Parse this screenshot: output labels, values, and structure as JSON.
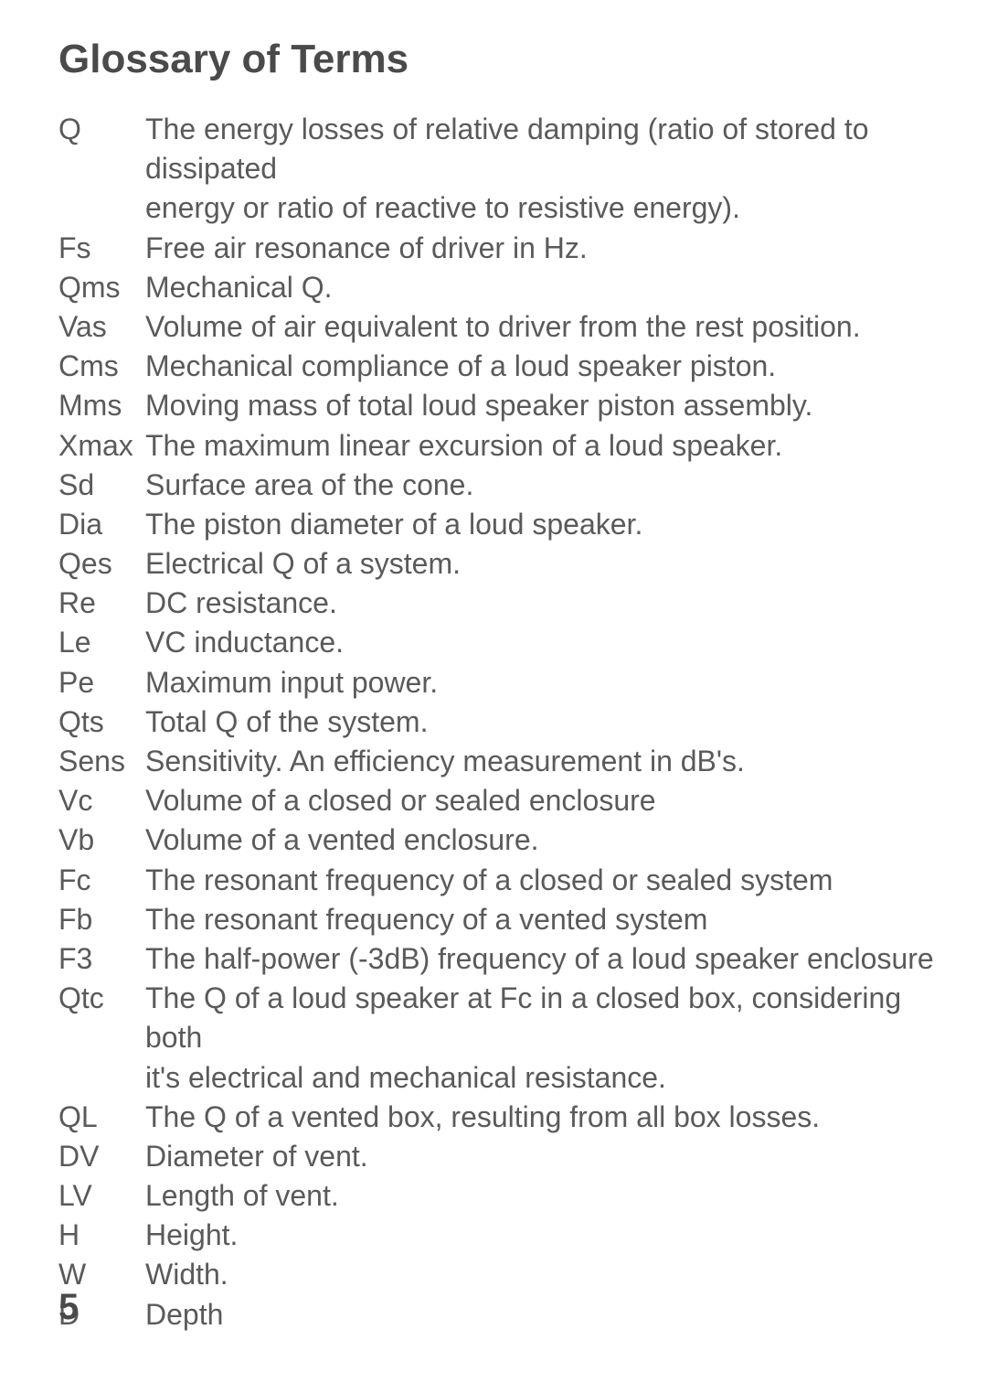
{
  "title": "Glossary of Terms",
  "pageNumber": "5",
  "entries": [
    {
      "term": "Q",
      "def": "The energy losses of relative damping (ratio of stored to dissipated",
      "indentDef": "energy or ratio of reactive to resistive energy)."
    },
    {
      "term": "Fs",
      "def": "Free air resonance of driver in Hz."
    },
    {
      "term": "Qms",
      "def": "Mechanical Q."
    },
    {
      "term": "Vas",
      "def": "Volume of air equivalent to driver from the rest position."
    },
    {
      "term": "Cms",
      "def": "Mechanical compliance of a loud speaker piston."
    },
    {
      "term": "Mms",
      "def": "Moving mass of total loud speaker piston assembly."
    },
    {
      "term": "Xmax",
      "def": "The maximum linear excursion of a loud speaker."
    },
    {
      "term": "Sd",
      "def": "Surface area of the cone."
    },
    {
      "term": "Dia",
      "def": "The piston diameter of a loud speaker."
    },
    {
      "term": "Qes",
      "def": "Electrical Q of a system."
    },
    {
      "term": "Re",
      "def": "DC resistance."
    },
    {
      "term": "Le",
      "def": "VC inductance."
    },
    {
      "term": "Pe",
      "def": "Maximum input power."
    },
    {
      "term": "Qts",
      "def": "Total Q of the system."
    },
    {
      "term": "Sens",
      "def": "Sensitivity. An efficiency measurement in dB's."
    },
    {
      "term": "Vc",
      "def": "Volume of a closed or sealed enclosure"
    },
    {
      "term": "Vb",
      "def": "Volume of a vented enclosure."
    },
    {
      "term": "Fc",
      "def": "The resonant frequency of a closed or sealed system"
    },
    {
      "term": "Fb",
      "def": "The resonant frequency of a vented system"
    },
    {
      "term": "F3",
      "def": "The half-power (-3dB) frequency of a loud speaker enclosure"
    },
    {
      "term": "Qtc",
      "def": " The Q of a loud speaker at Fc in a closed box, considering both",
      "indentDef": "it's electrical and mechanical resistance."
    },
    {
      "term": "QL",
      "def": "The Q of a vented box, resulting from all box losses."
    },
    {
      "term": "DV",
      "def": "Diameter of vent."
    },
    {
      "term": "LV",
      "def": "Length of vent."
    },
    {
      "term": "H",
      "def": " Height."
    },
    {
      "term": "W",
      "def": "  Width."
    },
    {
      "term": "D",
      "def": " Depth"
    }
  ]
}
